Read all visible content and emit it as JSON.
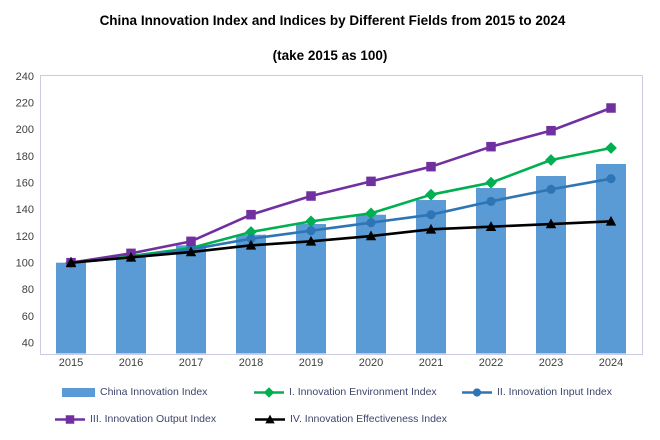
{
  "title": "China Innovation Index and Indices by Different Fields from 2015 to 2024",
  "subtitle": "(take 2015 as 100)",
  "chart_data": {
    "type": "bar+line",
    "categories": [
      "2015",
      "2016",
      "2017",
      "2018",
      "2019",
      "2020",
      "2021",
      "2022",
      "2023",
      "2024"
    ],
    "series": [
      {
        "name": "China Innovation Index",
        "type": "bar",
        "marker": "bar",
        "color": "#5B9BD5",
        "values": [
          100,
          106,
          113,
          121,
          129,
          136,
          147,
          156,
          165,
          174
        ]
      },
      {
        "name": "I. Innovation Environment Index",
        "type": "line",
        "marker": "diamond",
        "color": "#00B050",
        "values": [
          100,
          105,
          111,
          123,
          131,
          137,
          151,
          160,
          177,
          186
        ]
      },
      {
        "name": "II. Innovation Input Index",
        "type": "line",
        "marker": "circle",
        "color": "#2E75B6",
        "values": [
          100,
          104,
          110,
          118,
          124,
          130,
          136,
          146,
          155,
          163
        ]
      },
      {
        "name": "III. Innovation Output Index",
        "type": "line",
        "marker": "square",
        "color": "#7030A0",
        "values": [
          100,
          107,
          116,
          136,
          150,
          161,
          172,
          187,
          199,
          216
        ]
      },
      {
        "name": "IV. Innovation Effectiveness Index",
        "type": "line",
        "marker": "triangle",
        "color": "#000000",
        "values": [
          100,
          104,
          108,
          113,
          116,
          120,
          125,
          127,
          129,
          131
        ]
      }
    ],
    "yticks": [
      240,
      220,
      200,
      180,
      160,
      140,
      120,
      100,
      80,
      60,
      40
    ],
    "ylim": [
      40,
      240
    ],
    "ytick_step": 20,
    "grid": false,
    "legend_position": "bottom",
    "axis_text_color": "#404040",
    "plot_border_color": "#c8cbe2"
  }
}
